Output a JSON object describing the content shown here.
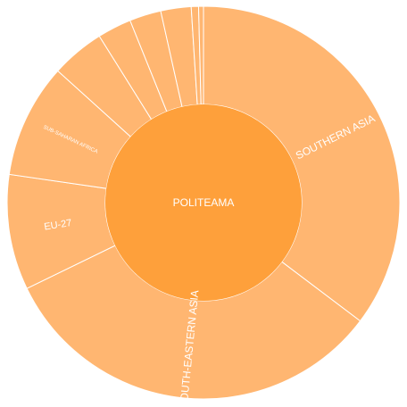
{
  "chart_data": {
    "type": "sunburst",
    "root": {
      "label": "POLITEAMA"
    },
    "segments": [
      {
        "label": "SOUTHERN ASIA",
        "value": 35.3
      },
      {
        "label": "SOUTH-EASTERN ASIA",
        "value": 32.5
      },
      {
        "label": "EU-27",
        "value": 9.5
      },
      {
        "label": "SUB-SAHARAN AFRICA",
        "value": 9.4
      },
      {
        "label": "",
        "value": 4.4
      },
      {
        "label": "",
        "value": 2.8
      },
      {
        "label": "",
        "value": 2.6
      },
      {
        "label": "",
        "value": 2.5
      },
      {
        "label": "",
        "value": 0.6
      },
      {
        "label": "",
        "value": 0.4
      }
    ],
    "colors": {
      "center": "#fea03b",
      "ring": "#ffb671",
      "divider": "#ffffff"
    }
  }
}
